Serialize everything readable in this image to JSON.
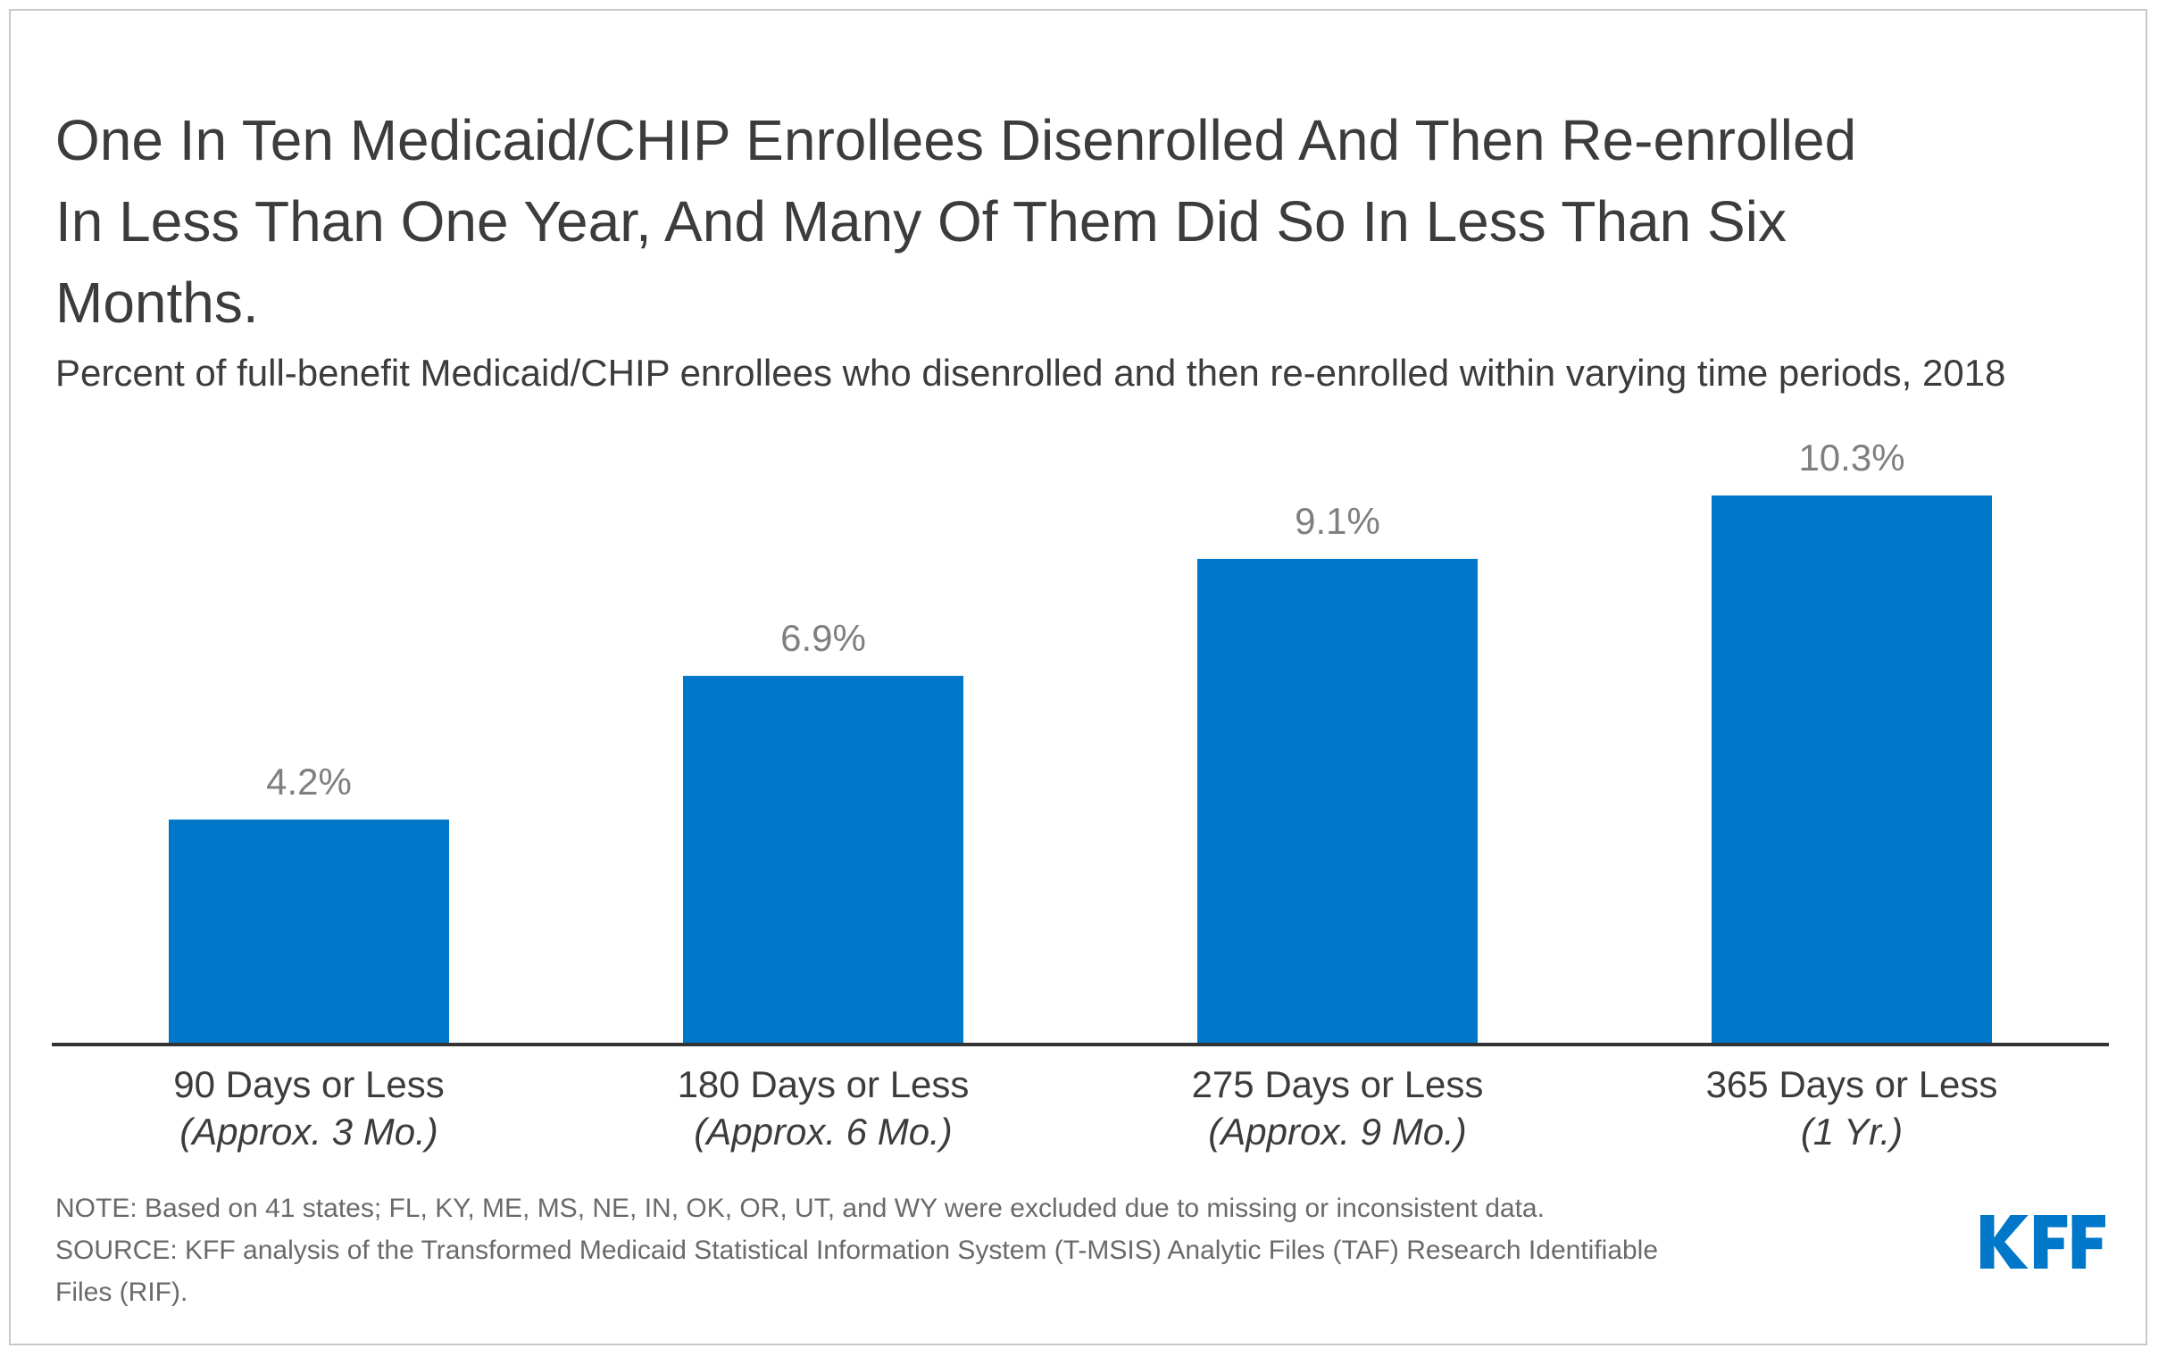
{
  "header": {
    "title_lines": [
      "One In Ten Medicaid/CHIP Enrollees Disenrolled And Then Re-enrolled",
      "In Less Than One Year, And Many Of Them Did So In Less Than Six",
      "Months."
    ]
  },
  "chart_data": {
    "type": "bar",
    "title": "One In Ten Medicaid/CHIP Enrollees Disenrolled And Then Re-enrolled In Less Than One Year, And Many Of Them Did So In Less Than Six Months.",
    "subtitle": "Percent of full-benefit Medicaid/CHIP enrollees who disenrolled and then re-enrolled within varying time periods, 2018",
    "categories": [
      "90 Days or Less",
      "180 Days or Less",
      "275 Days or Less",
      "365 Days or Less"
    ],
    "category_sublabels": [
      "(Approx. 3 Mo.)",
      "(Approx. 6 Mo.)",
      "(Approx. 9 Mo.)",
      "(1 Yr.)"
    ],
    "values": [
      4.2,
      6.9,
      9.1,
      10.3
    ],
    "value_labels": [
      "4.2%",
      "6.9%",
      "9.1%",
      "10.3%"
    ],
    "unit": "%",
    "ylim": [
      0,
      10.8
    ],
    "grid": false,
    "legend": false,
    "year": "2018"
  },
  "footer": {
    "note": "NOTE: Based on 41 states; FL, KY, ME, MS, NE, IN, OK, OR, UT, and WY were excluded due to missing or inconsistent data.",
    "source": "SOURCE: KFF analysis of the Transformed Medicaid Statistical Information System (T-MSIS) Analytic Files (TAF) Research Identifiable Files (RIF).",
    "logo_text": "KFF"
  },
  "colors": {
    "accent": "#0077c8",
    "title_text": "#3c3c3c",
    "value_label_text": "#7f7f7f",
    "category_text": "#3c3c3c",
    "note_text": "#6a6a6a",
    "axis": "#333333",
    "frame_border": "#c8c8c8"
  }
}
